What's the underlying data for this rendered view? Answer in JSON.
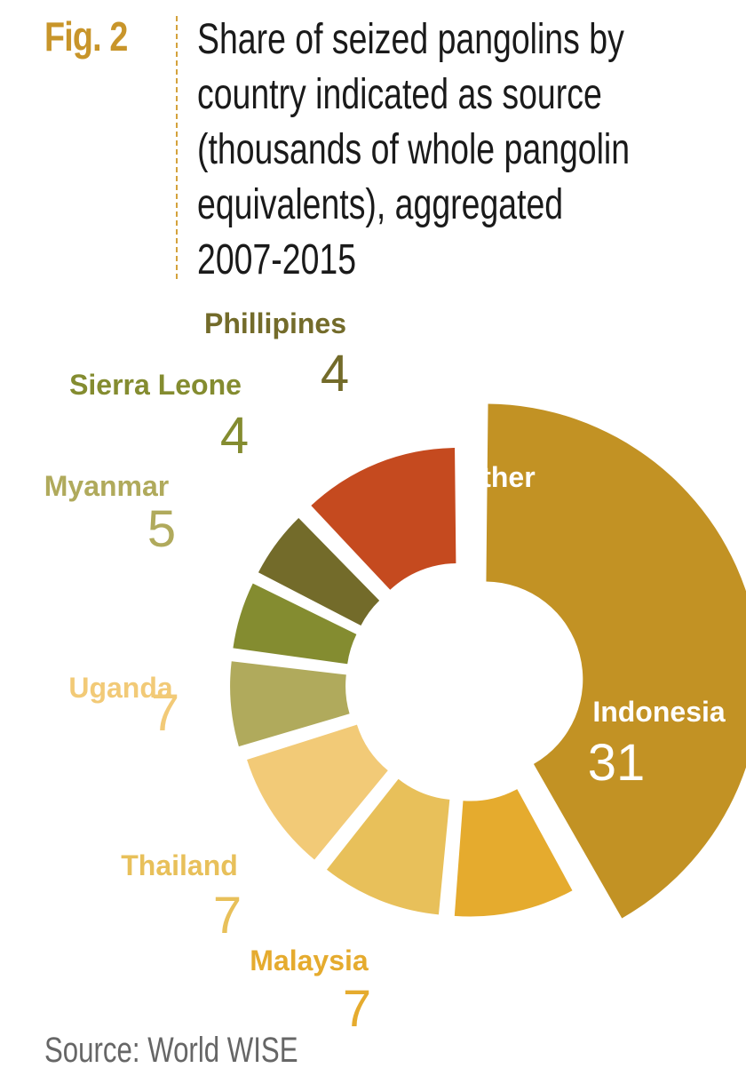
{
  "figure": {
    "label": "Fig. 2",
    "title": "Share of seized pangolins by\ncountry indicated as source\n(thousands of whole pangolin\nequivalents), aggregated\n2007-2015",
    "source": "Source: World WISE"
  },
  "chart_data": {
    "type": "pie",
    "title": "Share of seized pangolins by country indicated as source (thousands of whole pangolin equivalents), aggregated 2007-2015",
    "categories": [
      "Indonesia",
      "Malaysia",
      "Thailand",
      "Uganda",
      "Myanmar",
      "Sierra Leone",
      "Phillipines",
      "Other"
    ],
    "values": [
      31,
      7,
      7,
      7,
      5,
      4,
      4,
      9
    ],
    "colors": [
      "#c29224",
      "#e5ab2e",
      "#e8c05a",
      "#f2ca77",
      "#b0aa5c",
      "#848c30",
      "#736b2a",
      "#c54a1f"
    ],
    "label_colors": [
      "#ffffff",
      "#e5ab2e",
      "#e8c05a",
      "#f2ca77",
      "#b0aa5c",
      "#848c30",
      "#736b2a",
      "#ffffff"
    ],
    "donut": true,
    "exploded": true
  }
}
